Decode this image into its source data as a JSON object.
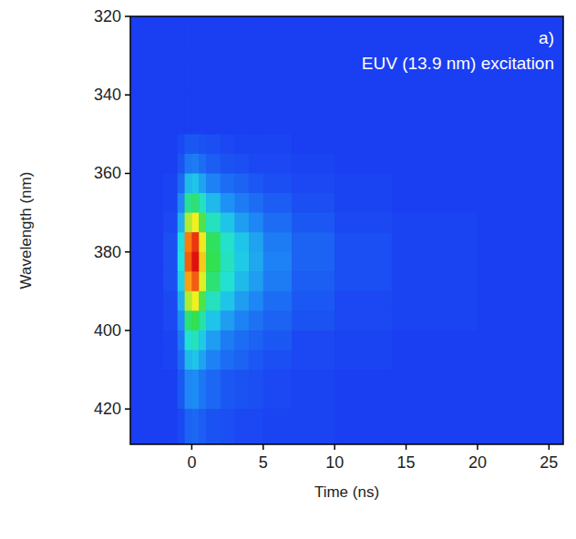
{
  "chart_data": {
    "type": "heatmap",
    "x_label": "Time (ns)",
    "y_label": "Wavelength (nm)",
    "annotations": [
      "a)",
      "EUV (13.9 nm) excitation"
    ],
    "xlim": [
      -4.3,
      26
    ],
    "ylim": [
      429,
      320
    ],
    "xticks": [
      0,
      5,
      10,
      15,
      20,
      25
    ],
    "yticks": [
      320,
      340,
      360,
      380,
      400,
      420
    ],
    "x_edges": [
      -4.3,
      -2,
      -1,
      -0.5,
      0,
      0.5,
      1,
      2,
      3,
      4,
      5,
      7,
      10,
      14,
      20,
      26
    ],
    "y_edges": [
      320,
      330,
      340,
      350,
      355,
      360,
      365,
      370,
      375,
      380,
      385,
      390,
      395,
      400,
      405,
      410,
      420,
      429
    ],
    "color_range": [
      0,
      100
    ],
    "cells": [
      [
        0,
        0,
        0,
        0,
        0,
        0,
        0,
        0,
        0,
        0,
        0,
        0,
        0,
        0,
        0
      ],
      [
        0,
        0,
        0,
        0,
        0,
        0,
        0,
        0,
        0,
        0,
        0,
        0,
        0,
        0,
        0
      ],
      [
        0,
        0,
        0,
        0,
        0,
        0,
        0,
        0,
        0,
        0,
        0,
        0,
        0,
        0,
        0
      ],
      [
        0,
        0,
        2,
        5,
        5,
        4,
        3,
        2,
        1,
        1,
        1,
        0,
        0,
        0,
        0
      ],
      [
        0,
        0,
        4,
        11,
        12,
        9,
        6,
        4,
        3,
        2,
        2,
        1,
        0,
        0,
        0
      ],
      [
        0,
        1,
        8,
        23,
        25,
        19,
        13,
        9,
        7,
        5,
        3,
        2,
        1,
        0,
        0
      ],
      [
        0,
        1,
        14,
        41,
        45,
        34,
        23,
        16,
        12,
        9,
        6,
        3,
        1,
        0,
        0
      ],
      [
        0,
        2,
        21,
        63,
        70,
        53,
        35,
        25,
        18,
        14,
        9,
        5,
        2,
        1,
        0
      ],
      [
        0,
        3,
        29,
        86,
        95,
        71,
        48,
        33,
        25,
        19,
        12,
        7,
        3,
        1,
        0
      ],
      [
        0,
        3,
        30,
        90,
        100,
        75,
        50,
        35,
        26,
        20,
        13,
        7,
        3,
        1,
        0
      ],
      [
        0,
        3,
        27,
        81,
        90,
        68,
        45,
        32,
        23,
        18,
        12,
        6,
        3,
        1,
        0
      ],
      [
        0,
        2,
        21,
        63,
        70,
        53,
        35,
        25,
        18,
        14,
        9,
        5,
        2,
        1,
        0
      ],
      [
        0,
        2,
        15,
        45,
        50,
        38,
        25,
        18,
        13,
        10,
        7,
        4,
        2,
        1,
        0
      ],
      [
        0,
        1,
        11,
        32,
        35,
        26,
        18,
        12,
        9,
        7,
        5,
        2,
        1,
        0,
        0
      ],
      [
        0,
        1,
        8,
        23,
        25,
        19,
        13,
        9,
        7,
        5,
        3,
        2,
        1,
        0,
        0
      ],
      [
        0,
        0,
        5,
        14,
        15,
        11,
        8,
        5,
        4,
        3,
        2,
        1,
        0,
        0,
        0
      ],
      [
        0,
        0,
        2,
        7,
        8,
        6,
        4,
        3,
        2,
        2,
        1,
        1,
        0,
        0,
        0
      ]
    ]
  }
}
